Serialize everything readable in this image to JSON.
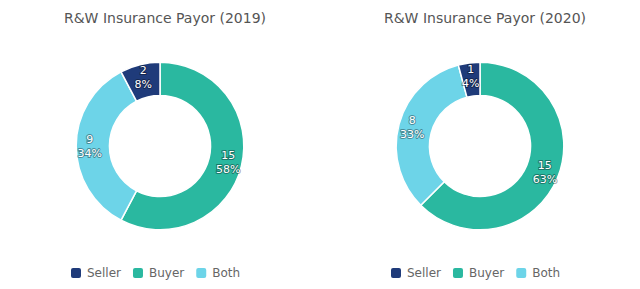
{
  "chart_data": [
    {
      "type": "pie",
      "title": "R&W Insurance Payor (2019)",
      "categories": [
        "Buyer",
        "Both",
        "Seller"
      ],
      "values": [
        15,
        9,
        2
      ],
      "percents": [
        {
          "value": 58,
          "label": "58%"
        },
        {
          "value": 34,
          "label": "34%"
        },
        {
          "value": 8,
          "label": "8%"
        }
      ],
      "colors": [
        "#2ab8a0",
        "#6dd4e8",
        "#1f3b7a"
      ],
      "data_labels": true,
      "legend": "bottom",
      "legend_labels": [
        "Seller",
        "Buyer",
        "Both"
      ]
    },
    {
      "type": "pie",
      "title": "R&W Insurance Payor (2020)",
      "categories": [
        "Buyer",
        "Both",
        "Seller"
      ],
      "values": [
        15,
        8,
        1
      ],
      "percents": [
        {
          "value": 63,
          "label": "63%"
        },
        {
          "value": 33,
          "label": "33%"
        },
        {
          "value": 4,
          "label": "4%"
        }
      ],
      "colors": [
        "#2ab8a0",
        "#6dd4e8",
        "#1f3b7a"
      ],
      "data_labels": true,
      "legend": "bottom",
      "legend_labels": [
        "Seller",
        "Buyer",
        "Both"
      ]
    }
  ]
}
